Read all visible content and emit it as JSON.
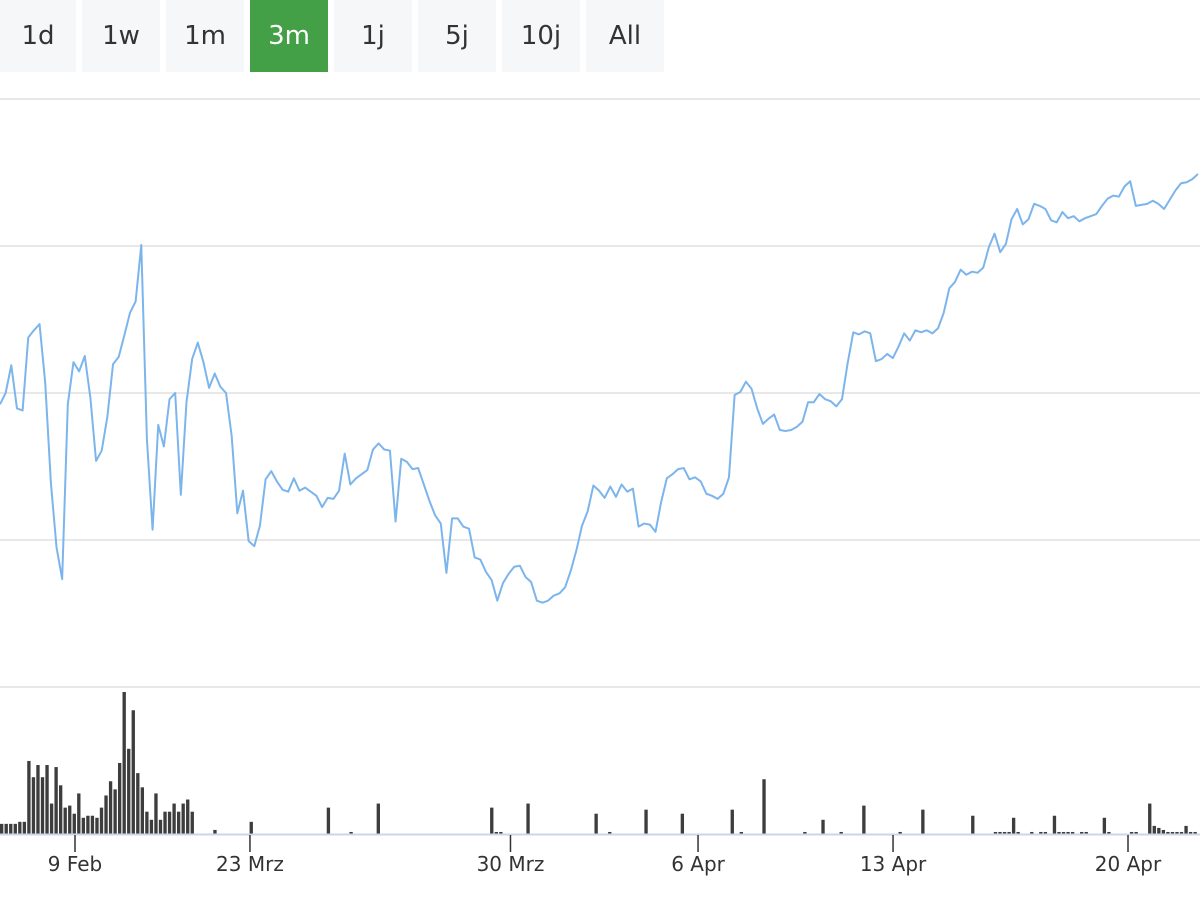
{
  "range_selector": {
    "buttons": [
      {
        "label": "1d"
      },
      {
        "label": "1w"
      },
      {
        "label": "1m"
      },
      {
        "label": "3m"
      },
      {
        "label": "1j"
      },
      {
        "label": "5j"
      },
      {
        "label": "10j"
      },
      {
        "label": "All"
      }
    ],
    "active": "3m"
  },
  "colors": {
    "accent": "#43a047",
    "line": "#7cb5ec",
    "volume": "#3d3d3d",
    "grid": "#e0e0e0",
    "axis": "#ccd6eb"
  },
  "chart_data": {
    "type": "line",
    "title": "",
    "xlabel": "",
    "ylabel": "",
    "grid": true,
    "legend": "none",
    "x_ticks": [
      "9 Feb",
      "23 Mrz",
      "30 Mrz",
      "6 Apr",
      "13 Apr",
      "20 Apr"
    ],
    "series": [
      {
        "type": "line",
        "values": [
          62.4,
          63.5,
          66.2,
          62.0,
          61.8,
          68.9,
          69.6,
          70.2,
          64.5,
          54.8,
          48.5,
          45.4,
          62.4,
          66.5,
          65.6,
          67.1,
          63.0,
          56.9,
          57.9,
          61.2,
          66.3,
          67.0,
          69.1,
          71.3,
          72.4,
          77.9,
          59.0,
          50.2,
          60.4,
          58.3,
          62.9,
          63.5,
          53.6,
          62.6,
          66.8,
          68.4,
          66.5,
          64.0,
          65.4,
          64.1,
          63.5,
          59.3,
          51.8,
          54.0,
          49.1,
          48.6,
          50.6,
          55.1,
          55.9,
          54.9,
          54.1,
          53.9,
          55.2,
          54.0,
          54.3,
          53.9,
          53.5,
          52.4,
          53.3,
          53.2,
          54.0,
          57.6,
          54.6,
          55.2,
          55.6,
          56.0,
          58.0,
          58.6,
          58.0,
          57.9,
          51.0,
          57.1,
          56.8,
          56.1,
          56.2,
          54.6,
          53.0,
          51.6,
          50.8,
          46.0,
          51.3,
          51.3,
          50.5,
          50.3,
          47.5,
          47.3,
          46.1,
          45.3,
          43.3,
          45.0,
          45.9,
          46.6,
          46.7,
          45.6,
          45.1,
          43.3,
          43.1,
          43.3,
          43.8,
          44.0,
          44.6,
          46.2,
          48.2,
          50.6,
          52.0,
          54.5,
          54.0,
          53.3,
          54.4,
          53.4,
          54.6,
          53.9,
          54.2,
          50.5,
          50.8,
          50.7,
          50.0,
          52.9,
          55.2,
          55.6,
          56.1,
          56.2,
          55.1,
          55.3,
          54.9,
          53.7,
          53.5,
          53.2,
          53.7,
          55.3,
          63.3,
          63.6,
          64.6,
          63.9,
          62.0,
          60.5,
          61.0,
          61.4,
          59.9,
          59.8,
          59.9,
          60.2,
          60.7,
          62.6,
          62.6,
          63.4,
          62.9,
          62.7,
          62.2,
          62.9,
          66.4,
          69.4,
          69.2,
          69.5,
          69.3,
          66.6,
          66.8,
          67.3,
          66.9,
          68.0,
          69.3,
          68.6,
          69.6,
          69.4,
          69.6,
          69.3,
          69.8,
          71.3,
          73.7,
          74.3,
          75.5,
          75.0,
          75.3,
          75.2,
          75.7,
          77.7,
          79.0,
          77.2,
          78.0,
          80.4,
          81.4,
          79.9,
          80.4,
          81.9,
          81.7,
          81.4,
          80.3,
          80.1,
          81.1,
          80.5,
          80.7,
          80.2,
          80.5,
          80.7,
          80.9,
          81.7,
          82.4,
          82.7,
          82.6,
          83.6,
          84.1,
          81.7,
          81.8,
          81.9,
          82.2,
          81.9,
          81.4,
          82.3,
          83.2,
          83.9,
          84.0,
          84.3,
          84.8
        ],
        "ylim": [
          35,
          92
        ]
      },
      {
        "type": "bar",
        "values": [
          10,
          10,
          10,
          10,
          12,
          12,
          72,
          56,
          68,
          56,
          68,
          30,
          66,
          48,
          26,
          28,
          20,
          40,
          16,
          18,
          18,
          16,
          26,
          38,
          52,
          44,
          70,
          140,
          84,
          122,
          60,
          46,
          22,
          14,
          40,
          14,
          22,
          22,
          30,
          22,
          30,
          34,
          22,
          0,
          0,
          0,
          0,
          4,
          0,
          0,
          0,
          0,
          0,
          0,
          0,
          12,
          0,
          0,
          0,
          0,
          0,
          0,
          0,
          0,
          0,
          0,
          0,
          0,
          0,
          0,
          0,
          0,
          26,
          0,
          0,
          0,
          0,
          2,
          0,
          0,
          0,
          0,
          0,
          30,
          0,
          0,
          0,
          0,
          0,
          0,
          0,
          0,
          0,
          0,
          0,
          0,
          0,
          0,
          0,
          0,
          0,
          0,
          0,
          0,
          0,
          0,
          0,
          0,
          26,
          2,
          2,
          0,
          0,
          0,
          0,
          0,
          30,
          0,
          0,
          0,
          0,
          0,
          0,
          0,
          0,
          0,
          0,
          0,
          0,
          0,
          0,
          20,
          0,
          0,
          2,
          0,
          0,
          0,
          0,
          0,
          0,
          0,
          24,
          0,
          0,
          0,
          0,
          0,
          0,
          0,
          20,
          0,
          0,
          0,
          0,
          0,
          0,
          0,
          0,
          0,
          0,
          24,
          0,
          2,
          0,
          0,
          0,
          0,
          54,
          0,
          0,
          0,
          0,
          0,
          0,
          0,
          0,
          2,
          0,
          0,
          0,
          14,
          0,
          0,
          0,
          2,
          0,
          0,
          0,
          0,
          28,
          0,
          0,
          0,
          0,
          0,
          0,
          0,
          2,
          0,
          0,
          0,
          0,
          24,
          0,
          0,
          0,
          0,
          0,
          0,
          0,
          0,
          0,
          0,
          18,
          0,
          0,
          0,
          0,
          2,
          2,
          2,
          2,
          16,
          2,
          0,
          0,
          2,
          0,
          2,
          2,
          0,
          18,
          2,
          2,
          2,
          2,
          0,
          2,
          2,
          0,
          0,
          0,
          16,
          2,
          0,
          0,
          0,
          0,
          2,
          2,
          0,
          0,
          30,
          8,
          6,
          4,
          2,
          2,
          2,
          2,
          8,
          2,
          2
        ],
        "ylim": [
          0,
          140
        ]
      }
    ]
  }
}
